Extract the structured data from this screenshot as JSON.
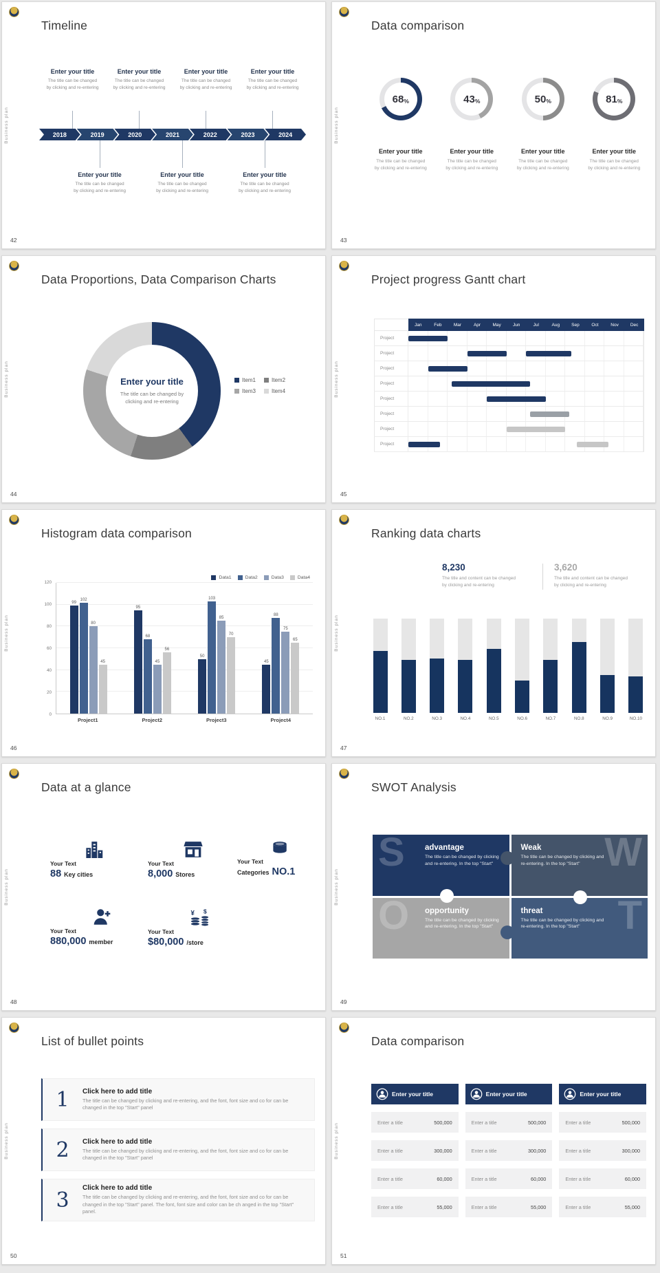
{
  "common": {
    "vertical_label": "Business plan",
    "percent_sign": "%",
    "navy": "#1f3864",
    "slate": "#44546a",
    "gray": "#a6a6a6",
    "light_gray": "#d9d9d9",
    "background": "#e9e9e9"
  },
  "slide42": {
    "number": "42",
    "title": "Timeline",
    "entry_title": "Enter your title",
    "line1": "The title can be changed",
    "line2": "by clicking and re-entering",
    "years": [
      "2018",
      "2019",
      "2020",
      "2021",
      "2022",
      "2023",
      "2024"
    ]
  },
  "slide43": {
    "number": "43",
    "title": "Data comparison",
    "item_title": "Enter your title",
    "line1": "The title can be changed",
    "line2": "by clicking and re-entering"
  },
  "slide44": {
    "number": "44",
    "title": "Data Proportions, Data Comparison Charts",
    "center_title": "Enter your title",
    "center_line1": "The title can be changed by",
    "center_line2": "clicking and re-entering"
  },
  "slide45": {
    "number": "45",
    "title": "Project progress Gantt chart"
  },
  "slide46": {
    "number": "46",
    "title": "Histogram data comparison"
  },
  "slide47": {
    "number": "47",
    "title": "Ranking data charts",
    "callout_line1": "The title and content can be changed",
    "callout_line2": "by clicking and re-entering"
  },
  "slide48": {
    "number": "48",
    "title": "Data at a glance",
    "yen": "¥",
    "dollar": "$",
    "stats": [
      {
        "label": "Your Text",
        "big": "88",
        "small": "Key cities"
      },
      {
        "label": "Your Text",
        "big": "8,000",
        "small": "Stores"
      },
      {
        "label": "Your Text",
        "big": "NO.1",
        "small": "Categories"
      },
      {
        "label": "Your Text",
        "big": "880,000",
        "small": "member"
      },
      {
        "label": "Your Text",
        "big": "$80,000",
        "small": "/store"
      }
    ]
  },
  "slide49": {
    "number": "49",
    "title": "SWOT Analysis",
    "quads": [
      {
        "letter": "S",
        "title": "advantage",
        "text": "The title can be changed by clicking and re-entering. In the top \"Start\"",
        "color": "#1f3864"
      },
      {
        "letter": "W",
        "title": "Weak",
        "text": "The title can be changed by clicking and re-entering. In the top \"Start\"",
        "color": "#44546a"
      },
      {
        "letter": "O",
        "title": "opportunity",
        "text": "The title can be changed by clicking and re-entering. In the top \"Start\"",
        "color": "#a6a6a6"
      },
      {
        "letter": "T",
        "title": "threat",
        "text": "The title can be changed by clicking and re-entering. In the top \"Start\"",
        "color": "#415a7d"
      }
    ]
  },
  "slide50": {
    "number": "50",
    "title": "List of bullet points",
    "items": [
      {
        "num": "1",
        "title": "Click here to add title",
        "text": "The title can be changed by clicking and re-entering, and the font, font size and co for can be changed in the top \"Start\" panel"
      },
      {
        "num": "2",
        "title": "Click here to add title",
        "text": "The title can be changed by clicking and re-entering, and the font, font size and co for can be changed in the top \"Start\" panel"
      },
      {
        "num": "3",
        "title": "Click here to add title",
        "text": "The title can be changed by clicking and re-entering, and the font, font size and co for can be changed in the top \"Start\" panel. The font, font size and color can be ch anged in the top \"Start\" panel."
      }
    ]
  },
  "slide51": {
    "number": "51",
    "title": "Data comparison",
    "header": "Enter your title",
    "cell_label": "Enter a title",
    "values": [
      "500,000",
      "300,000",
      "60,000",
      "55,000"
    ]
  },
  "chart_data": [
    {
      "slide": "43",
      "type": "pie",
      "subtype": "donut-progress",
      "values": [
        68,
        43,
        50,
        81
      ],
      "colors": [
        "#1f3864",
        "#a3a3a3",
        "#8c8c8c",
        "#6e6e74"
      ],
      "track": "#e4e4e6"
    },
    {
      "slide": "44",
      "type": "pie",
      "labels": [
        "Item1",
        "Item2",
        "Item3",
        "Item4"
      ],
      "values": [
        40,
        15,
        25,
        20
      ],
      "colors": [
        "#1f3864",
        "#7f7f7f",
        "#a6a6a6",
        "#d9d9d9"
      ],
      "donut": true,
      "title": "Enter your title",
      "legend_position": "right"
    },
    {
      "slide": "45",
      "type": "gantt",
      "months": [
        "Jan",
        "Feb",
        "Mar",
        "Apr",
        "May",
        "Jun",
        "Jul",
        "Aug",
        "Sep",
        "Oct",
        "Nov",
        "Dec"
      ],
      "row_label": "Project",
      "row_count": 8,
      "bar_colors": {
        "navy": "#1f3864",
        "gray": "#9aa0a6",
        "silver": "#c6c6c6"
      },
      "bars": [
        {
          "row": 0,
          "start": 0,
          "length": 2,
          "color": "navy"
        },
        {
          "row": 1,
          "start": 3,
          "length": 2,
          "color": "navy"
        },
        {
          "row": 1,
          "start": 6,
          "length": 2.3,
          "color": "navy"
        },
        {
          "row": 2,
          "start": 1,
          "length": 2,
          "color": "navy"
        },
        {
          "row": 3,
          "start": 2.2,
          "length": 4,
          "color": "navy"
        },
        {
          "row": 4,
          "start": 4,
          "length": 3,
          "color": "navy"
        },
        {
          "row": 5,
          "start": 6.2,
          "length": 2,
          "color": "gray"
        },
        {
          "row": 6,
          "start": 5,
          "length": 3,
          "color": "silver"
        },
        {
          "row": 7,
          "start": 0,
          "length": 1.6,
          "color": "navy"
        },
        {
          "row": 7,
          "start": 8.6,
          "length": 1.6,
          "color": "silver"
        }
      ]
    },
    {
      "slide": "46",
      "type": "bar",
      "categories": [
        "Project1",
        "Project2",
        "Project3",
        "Project4"
      ],
      "series": [
        {
          "name": "Data1",
          "color": "#1f3864",
          "values": [
            99,
            95,
            50,
            45
          ]
        },
        {
          "name": "Data2",
          "color": "#41618f",
          "values": [
            102,
            68,
            103,
            88
          ]
        },
        {
          "name": "Data3",
          "color": "#8b9cb8",
          "values": [
            80,
            45,
            85,
            75
          ]
        },
        {
          "name": "Data4",
          "color": "#c9c9c9",
          "values": [
            45,
            56,
            70,
            65
          ]
        }
      ],
      "ylim": [
        0,
        120
      ],
      "yticks": [
        0,
        20,
        40,
        60,
        80,
        100,
        120
      ],
      "grid": true,
      "legend_position": "top-right"
    },
    {
      "slide": "47",
      "type": "bar",
      "categories": [
        "NO.1",
        "NO.2",
        "NO.3",
        "NO.4",
        "NO.5",
        "NO.6",
        "NO.7",
        "NO.8",
        "NO.9",
        "NO.10"
      ],
      "fill_percent": [
        66,
        56,
        58,
        56,
        68,
        34,
        56,
        75,
        40,
        39
      ],
      "bar_color": "#16345f",
      "track_color": "#e6e6e6",
      "callouts": [
        {
          "value": "8,230",
          "color": "#1f3864"
        },
        {
          "value": "3,620",
          "color": "#a6a6a6"
        }
      ]
    }
  ]
}
